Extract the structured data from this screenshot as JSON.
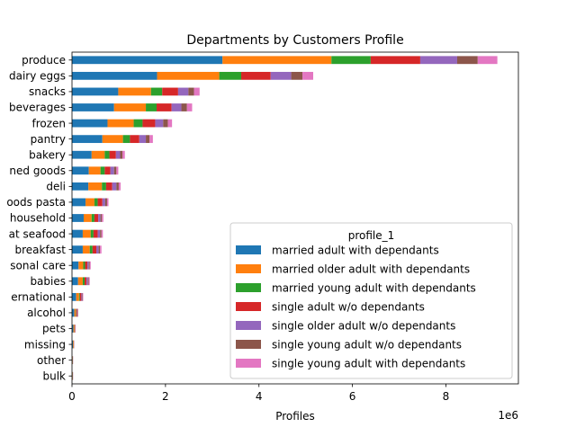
{
  "chart_data": {
    "type": "bar",
    "orientation": "horizontal",
    "stacked": true,
    "title": "Departments by Customers Profile",
    "xlabel": "Profiles",
    "ylabel": "",
    "x_scale_label": "1e6",
    "xlim": [
      0,
      9.55
    ],
    "x_ticks": [
      0,
      2,
      4,
      6,
      8
    ],
    "grid": false,
    "legend": {
      "title": "profile_1",
      "placement": "lower-right"
    },
    "categories": [
      "produce",
      "dairy eggs",
      "snacks",
      "beverages",
      "frozen",
      "pantry",
      "bakery",
      "canned goods",
      "deli",
      "dry goods pasta",
      "household",
      "meat seafood",
      "breakfast",
      "personal care",
      "babies",
      "international",
      "alcohol",
      "pets",
      "missing",
      "other",
      "bulk"
    ],
    "category_labels_visible": [
      "produce",
      "dairy eggs",
      "snacks",
      "beverages",
      "frozen",
      "pantry",
      "bakery",
      "ned goods",
      "deli",
      "oods pasta",
      "household",
      "at seafood",
      "breakfast",
      "sonal care",
      "babies",
      "ernational",
      "alcohol",
      "pets",
      "missing",
      "other",
      "bulk"
    ],
    "series": [
      {
        "name": "married adult with dependants",
        "color": "#1f77b4",
        "values": [
          3.22,
          1.82,
          0.99,
          0.9,
          0.76,
          0.65,
          0.42,
          0.36,
          0.35,
          0.29,
          0.25,
          0.23,
          0.23,
          0.14,
          0.13,
          0.09,
          0.05,
          0.03,
          0.02,
          0.01,
          0.01
        ]
      },
      {
        "name": "married older adult with dependants",
        "color": "#ff7f0e",
        "values": [
          2.33,
          1.33,
          0.7,
          0.68,
          0.56,
          0.44,
          0.28,
          0.25,
          0.29,
          0.19,
          0.17,
          0.17,
          0.15,
          0.1,
          0.1,
          0.06,
          0.03,
          0.02,
          0.01,
          0.005,
          0.005
        ]
      },
      {
        "name": "married young adult with dependants",
        "color": "#2ca02c",
        "values": [
          0.84,
          0.47,
          0.24,
          0.23,
          0.19,
          0.15,
          0.1,
          0.09,
          0.09,
          0.07,
          0.06,
          0.06,
          0.06,
          0.04,
          0.04,
          0.02,
          0.01,
          0.005,
          0.005,
          0.002,
          0.002
        ]
      },
      {
        "name": "single adult w/o dependants",
        "color": "#d62728",
        "values": [
          1.06,
          0.63,
          0.34,
          0.32,
          0.27,
          0.2,
          0.14,
          0.12,
          0.13,
          0.1,
          0.08,
          0.09,
          0.08,
          0.05,
          0.04,
          0.03,
          0.02,
          0.01,
          0.005,
          0.003,
          0.003
        ]
      },
      {
        "name": "single older adult w/o dependants",
        "color": "#9467bd",
        "values": [
          0.79,
          0.44,
          0.22,
          0.21,
          0.17,
          0.14,
          0.09,
          0.08,
          0.09,
          0.06,
          0.05,
          0.05,
          0.05,
          0.03,
          0.03,
          0.02,
          0.01,
          0.005,
          0.004,
          0.002,
          0.002
        ]
      },
      {
        "name": "single young adult w/o dependants",
        "color": "#8c564b",
        "values": [
          0.44,
          0.24,
          0.12,
          0.12,
          0.1,
          0.08,
          0.05,
          0.05,
          0.05,
          0.04,
          0.03,
          0.03,
          0.03,
          0.02,
          0.02,
          0.01,
          0.01,
          0.004,
          0.003,
          0.001,
          0.001
        ]
      },
      {
        "name": "single young adult with dependants",
        "color": "#e377c2",
        "values": [
          0.42,
          0.23,
          0.12,
          0.11,
          0.09,
          0.07,
          0.05,
          0.04,
          0.04,
          0.03,
          0.03,
          0.03,
          0.03,
          0.02,
          0.02,
          0.01,
          0.005,
          0.003,
          0.002,
          0.001,
          0.001
        ]
      }
    ]
  }
}
